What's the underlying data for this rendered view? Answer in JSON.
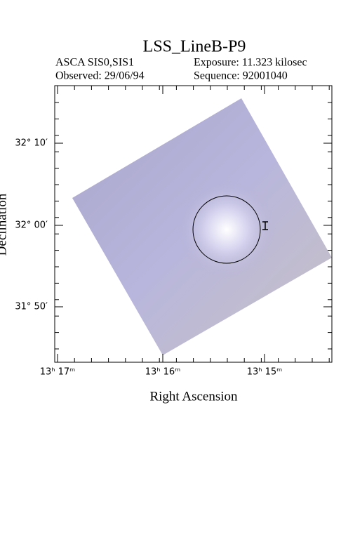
{
  "header": {
    "title": "LSS_LineB-P9",
    "instrument": "ASCA SIS0,SIS1",
    "exposure": "Exposure: 11.323 kilosec",
    "observed": "Observed: 29/06/94",
    "sequence": "Sequence: 92001040"
  },
  "axes": {
    "x_label": "Right Ascension",
    "y_label": "Declination",
    "x_ticks": [
      "13ʰ 17ᵐ",
      "13ʰ 16ᵐ",
      "13ʰ 15ᵐ"
    ],
    "y_ticks": [
      "32° 10′",
      "32° 00′",
      "31° 50′"
    ]
  }
}
